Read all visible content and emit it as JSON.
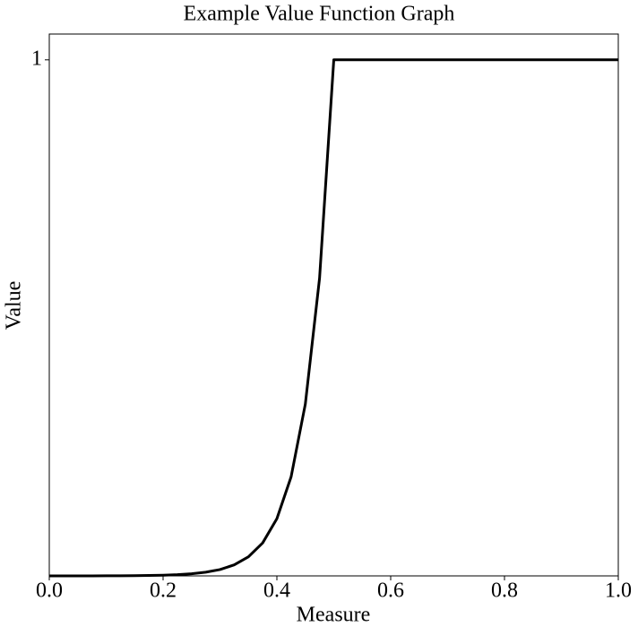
{
  "chart_data": {
    "type": "line",
    "title": "Example Value Function Graph",
    "x_label": "Measure",
    "y_label": "Value",
    "x": [
      0,
      0.025,
      0.05,
      0.075,
      0.1,
      0.125,
      0.15,
      0.175,
      0.2,
      0.225,
      0.25,
      0.275,
      0.3,
      0.325,
      0.35,
      0.375,
      0.4,
      0.425,
      0.45,
      0.475,
      0.5,
      1.0
    ],
    "series": [
      {
        "color": "#000000",
        "values": [
          2e-05,
          3e-05,
          5e-05,
          9e-05,
          0.00015,
          0.00026,
          0.00045,
          0.00078,
          0.0014,
          0.0024,
          0.0041,
          0.0071,
          0.0123,
          0.0213,
          0.0369,
          0.0639,
          0.1108,
          0.192,
          0.333,
          0.577,
          1,
          1
        ]
      }
    ],
    "xlim": [
      0,
      1
    ],
    "ylim": [
      0,
      1.05
    ],
    "xticks": [
      {
        "value": 0,
        "label": "0.0"
      },
      0.2,
      0.4,
      0.6,
      0.8,
      {
        "value": 1,
        "label": "1.0"
      }
    ],
    "yticks": [
      1
    ],
    "grid": false
  }
}
